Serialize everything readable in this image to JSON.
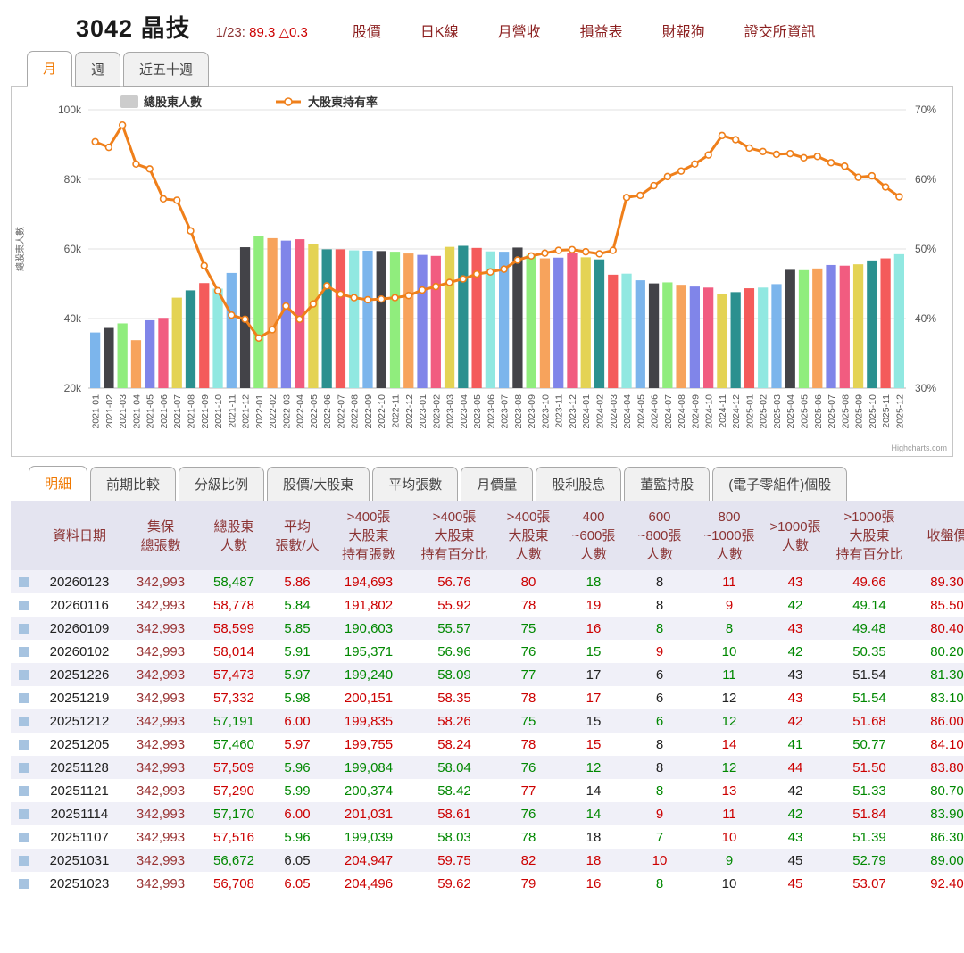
{
  "colors": {
    "up": "#cc0000",
    "down": "#008800",
    "flat": "#222222",
    "shares": "#993333",
    "header_text": "#8b3333",
    "accent": "#f07800"
  },
  "header": {
    "title": "3042 晶技",
    "quote": {
      "date": "1/23:",
      "price": "89.3",
      "change": "△0.3"
    },
    "nav_links": [
      "股價",
      "日K線",
      "月營收",
      "損益表",
      "財報狗",
      "證交所資訊"
    ]
  },
  "period_tabs": {
    "items": [
      "月",
      "週",
      "近五十週"
    ],
    "active": 0
  },
  "detail_tabs": {
    "items": [
      "明細",
      "前期比較",
      "分級比例",
      "股價/大股東",
      "平均張數",
      "月價量",
      "股利股息",
      "董監持股",
      "(電子零組件)個股"
    ],
    "active": 0
  },
  "chart_data": {
    "type": "combo",
    "categories": [
      "2021-01",
      "2021-02",
      "2021-03",
      "2021-04",
      "2021-05",
      "2021-06",
      "2021-07",
      "2021-08",
      "2021-09",
      "2021-10",
      "2021-11",
      "2021-12",
      "2022-01",
      "2022-02",
      "2022-03",
      "2022-04",
      "2022-05",
      "2022-06",
      "2022-07",
      "2022-08",
      "2022-09",
      "2022-10",
      "2022-11",
      "2022-12",
      "2023-01",
      "2023-02",
      "2023-03",
      "2023-04",
      "2023-05",
      "2023-06",
      "2023-07",
      "2023-08",
      "2023-09",
      "2023-10",
      "2023-11",
      "2023-12",
      "2024-01",
      "2024-02",
      "2024-03",
      "2024-04",
      "2024-05",
      "2024-06",
      "2024-07",
      "2024-08",
      "2024-09",
      "2024-10",
      "2024-11",
      "2024-12",
      "2025-01",
      "2025-02",
      "2025-03",
      "2025-04",
      "2025-05",
      "2025-06",
      "2025-07",
      "2025-08",
      "2025-09",
      "2025-10",
      "2025-11",
      "2025-12"
    ],
    "series": [
      {
        "name": "總股東人數",
        "type": "column",
        "axis": "left",
        "values_k": [
          36.0,
          37.3,
          38.6,
          33.8,
          39.5,
          40.2,
          46.0,
          48.1,
          50.2,
          48.6,
          53.1,
          60.5,
          63.6,
          63.1,
          62.4,
          62.8,
          61.5,
          59.9,
          59.9,
          59.6,
          59.5,
          59.4,
          59.2,
          58.7,
          58.3,
          58.0,
          60.6,
          60.9,
          60.3,
          59.3,
          59.2,
          60.4,
          58.3,
          57.3,
          57.5,
          58.8,
          57.6,
          57.0,
          52.6,
          52.9,
          51.0,
          50.1,
          50.4,
          49.7,
          49.2,
          48.9,
          47.0,
          47.6,
          48.7,
          48.9,
          49.9,
          54.0,
          53.9,
          54.4,
          55.4,
          55.2,
          55.6,
          56.7,
          57.3,
          58.5
        ]
      },
      {
        "name": "大股東持有率",
        "type": "line",
        "axis": "right",
        "color": "#ef7f1a",
        "values_pct": [
          65.4,
          64.6,
          67.8,
          62.2,
          61.5,
          57.2,
          57.0,
          52.6,
          47.6,
          44.0,
          40.5,
          39.9,
          37.2,
          38.4,
          41.8,
          39.9,
          42.1,
          44.7,
          43.5,
          43.0,
          42.7,
          42.8,
          43.0,
          43.3,
          44.1,
          44.6,
          45.2,
          45.7,
          46.4,
          46.7,
          47.1,
          48.4,
          49.0,
          49.4,
          49.8,
          49.9,
          49.6,
          49.3,
          49.8,
          57.4,
          57.7,
          59.1,
          60.4,
          61.2,
          62.2,
          63.5,
          66.3,
          65.7,
          64.5,
          64.0,
          63.6,
          63.7,
          63.1,
          63.3,
          62.4,
          61.9,
          60.3,
          60.5,
          58.9,
          57.5
        ]
      }
    ],
    "left_axis": {
      "title": "總股東人數",
      "ticks": [
        "100k",
        "80k",
        "60k",
        "40k",
        "20k"
      ],
      "min_k": 20,
      "max_k": 100
    },
    "right_axis": {
      "ticks": [
        "70%",
        "60%",
        "50%",
        "40%",
        "30%"
      ],
      "min": 30,
      "max": 70
    },
    "palette": [
      "#7cb5ec",
      "#434348",
      "#90ed7d",
      "#f7a35c",
      "#8085e9",
      "#f15c80",
      "#e4d354",
      "#2b908f",
      "#f45b5b",
      "#91e8e1"
    ],
    "legend_swatch_color": "#cccccc",
    "credit": "Highcharts.com"
  },
  "table": {
    "headers": [
      "資料日期",
      "集保\n總張數",
      "總股東\n人數",
      "平均\n張數/人",
      ">400張\n大股東\n持有張數",
      ">400張\n大股東\n持有百分比",
      ">400張\n大股東\n人數",
      "400\n~600張\n人數",
      "600\n~800張\n人數",
      "800\n~1000張\n人數",
      ">1000張\n人數",
      ">1000張\n大股東\n持有百分比",
      "收盤價"
    ],
    "rows": [
      {
        "cells": [
          "20260123",
          "342,993",
          "58,487",
          "5.86",
          "194,693",
          "56.76",
          "80",
          "18",
          "8",
          "11",
          "43",
          "49.66",
          "89.30"
        ],
        "colors": [
          "k",
          "m",
          "g",
          "r",
          "r",
          "r",
          "r",
          "g",
          "k",
          "r",
          "r",
          "r",
          "r"
        ]
      },
      {
        "cells": [
          "20260116",
          "342,993",
          "58,778",
          "5.84",
          "191,802",
          "55.92",
          "78",
          "19",
          "8",
          "9",
          "42",
          "49.14",
          "85.50"
        ],
        "colors": [
          "k",
          "m",
          "r",
          "g",
          "r",
          "r",
          "r",
          "r",
          "k",
          "r",
          "g",
          "g",
          "r"
        ]
      },
      {
        "cells": [
          "20260109",
          "342,993",
          "58,599",
          "5.85",
          "190,603",
          "55.57",
          "75",
          "16",
          "8",
          "8",
          "43",
          "49.48",
          "80.40"
        ],
        "colors": [
          "k",
          "m",
          "r",
          "g",
          "g",
          "g",
          "g",
          "r",
          "g",
          "g",
          "r",
          "g",
          "r"
        ]
      },
      {
        "cells": [
          "20260102",
          "342,993",
          "58,014",
          "5.91",
          "195,371",
          "56.96",
          "76",
          "15",
          "9",
          "10",
          "42",
          "50.35",
          "80.20"
        ],
        "colors": [
          "k",
          "m",
          "r",
          "g",
          "g",
          "g",
          "g",
          "g",
          "r",
          "g",
          "g",
          "g",
          "g"
        ]
      },
      {
        "cells": [
          "20251226",
          "342,993",
          "57,473",
          "5.97",
          "199,240",
          "58.09",
          "77",
          "17",
          "6",
          "11",
          "43",
          "51.54",
          "81.30"
        ],
        "colors": [
          "k",
          "m",
          "r",
          "g",
          "g",
          "g",
          "g",
          "k",
          "k",
          "g",
          "k",
          "k",
          "g"
        ]
      },
      {
        "cells": [
          "20251219",
          "342,993",
          "57,332",
          "5.98",
          "200,151",
          "58.35",
          "78",
          "17",
          "6",
          "12",
          "43",
          "51.54",
          "83.10"
        ],
        "colors": [
          "k",
          "m",
          "r",
          "g",
          "r",
          "r",
          "r",
          "r",
          "k",
          "k",
          "r",
          "g",
          "g"
        ]
      },
      {
        "cells": [
          "20251212",
          "342,993",
          "57,191",
          "6.00",
          "199,835",
          "58.26",
          "75",
          "15",
          "6",
          "12",
          "42",
          "51.68",
          "86.00"
        ],
        "colors": [
          "k",
          "m",
          "g",
          "r",
          "r",
          "r",
          "g",
          "k",
          "g",
          "g",
          "r",
          "r",
          "r"
        ]
      },
      {
        "cells": [
          "20251205",
          "342,993",
          "57,460",
          "5.97",
          "199,755",
          "58.24",
          "78",
          "15",
          "8",
          "14",
          "41",
          "50.77",
          "84.10"
        ],
        "colors": [
          "k",
          "m",
          "g",
          "r",
          "r",
          "r",
          "r",
          "r",
          "k",
          "r",
          "g",
          "g",
          "r"
        ]
      },
      {
        "cells": [
          "20251128",
          "342,993",
          "57,509",
          "5.96",
          "199,084",
          "58.04",
          "76",
          "12",
          "8",
          "12",
          "44",
          "51.50",
          "83.80"
        ],
        "colors": [
          "k",
          "m",
          "r",
          "g",
          "g",
          "g",
          "g",
          "g",
          "k",
          "g",
          "r",
          "r",
          "r"
        ]
      },
      {
        "cells": [
          "20251121",
          "342,993",
          "57,290",
          "5.99",
          "200,374",
          "58.42",
          "77",
          "14",
          "8",
          "13",
          "42",
          "51.33",
          "80.70"
        ],
        "colors": [
          "k",
          "m",
          "r",
          "g",
          "g",
          "g",
          "r",
          "k",
          "g",
          "r",
          "k",
          "g",
          "g"
        ]
      },
      {
        "cells": [
          "20251114",
          "342,993",
          "57,170",
          "6.00",
          "201,031",
          "58.61",
          "76",
          "14",
          "9",
          "11",
          "42",
          "51.84",
          "83.90"
        ],
        "colors": [
          "k",
          "m",
          "g",
          "r",
          "r",
          "r",
          "g",
          "g",
          "r",
          "r",
          "g",
          "r",
          "g"
        ]
      },
      {
        "cells": [
          "20251107",
          "342,993",
          "57,516",
          "5.96",
          "199,039",
          "58.03",
          "78",
          "18",
          "7",
          "10",
          "43",
          "51.39",
          "86.30"
        ],
        "colors": [
          "k",
          "m",
          "r",
          "g",
          "g",
          "g",
          "g",
          "k",
          "g",
          "r",
          "g",
          "g",
          "g"
        ]
      },
      {
        "cells": [
          "20251031",
          "342,993",
          "56,672",
          "6.05",
          "204,947",
          "59.75",
          "82",
          "18",
          "10",
          "9",
          "45",
          "52.79",
          "89.00"
        ],
        "colors": [
          "k",
          "m",
          "g",
          "k",
          "r",
          "r",
          "r",
          "r",
          "r",
          "g",
          "k",
          "g",
          "g"
        ]
      },
      {
        "cells": [
          "20251023",
          "342,993",
          "56,708",
          "6.05",
          "204,496",
          "59.62",
          "79",
          "16",
          "8",
          "10",
          "45",
          "53.07",
          "92.40"
        ],
        "colors": [
          "k",
          "m",
          "r",
          "r",
          "r",
          "r",
          "r",
          "r",
          "g",
          "k",
          "r",
          "r",
          "r"
        ]
      }
    ]
  }
}
